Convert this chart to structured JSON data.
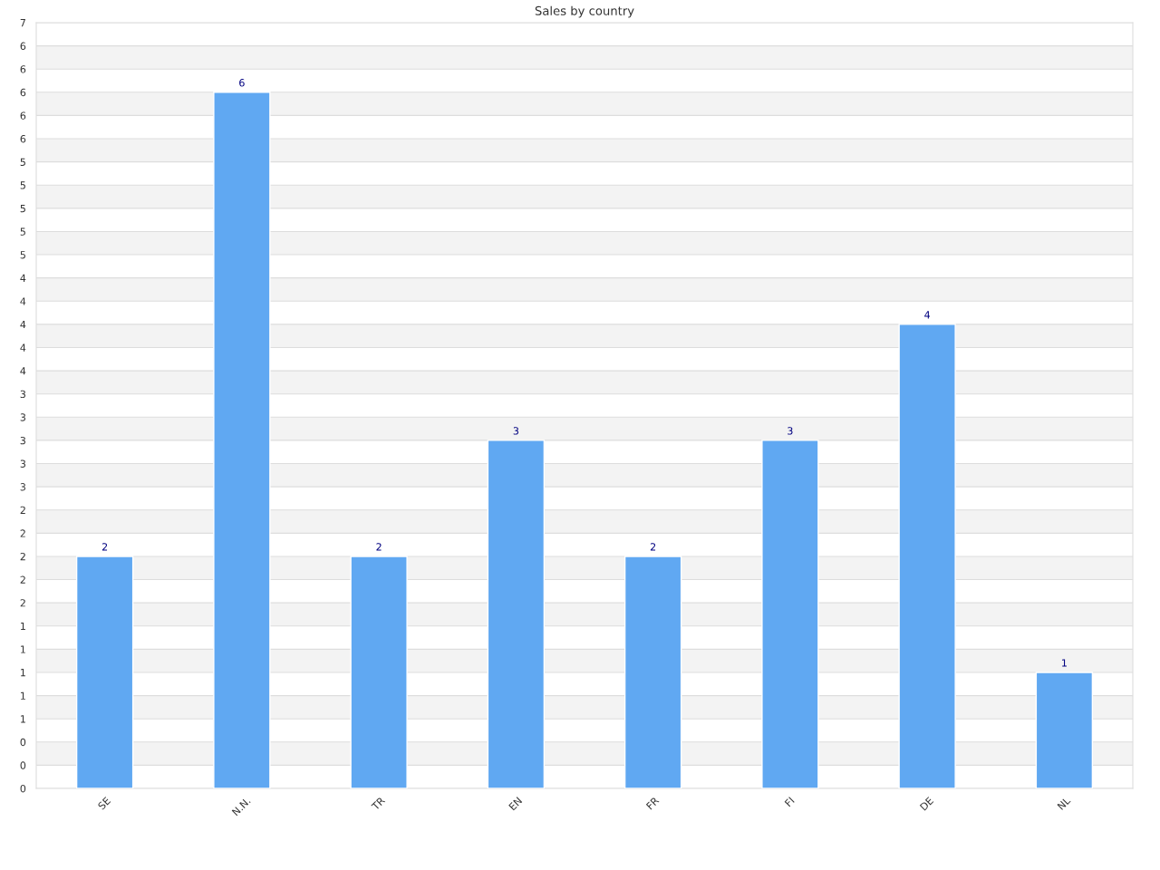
{
  "chart_data": {
    "type": "bar",
    "title": "Sales by country",
    "categories": [
      "SE",
      "N.N.",
      "TR",
      "EN",
      "FR",
      "FI",
      "DE",
      "NL"
    ],
    "values": [
      2,
      6,
      2,
      3,
      2,
      3,
      4,
      1
    ],
    "color": "#60a8f2",
    "data_labels": true,
    "ylim": [
      0,
      6.6
    ],
    "yticks": [
      {
        "value": 0,
        "label": "0"
      },
      {
        "value": 0.2,
        "label": "0"
      },
      {
        "value": 0.4,
        "label": "0"
      },
      {
        "value": 0.6,
        "label": "1"
      },
      {
        "value": 0.8,
        "label": "1"
      },
      {
        "value": 1.0,
        "label": "1"
      },
      {
        "value": 1.2,
        "label": "1"
      },
      {
        "value": 1.4,
        "label": "1"
      },
      {
        "value": 1.6,
        "label": "2"
      },
      {
        "value": 1.8,
        "label": "2"
      },
      {
        "value": 2.0,
        "label": "2"
      },
      {
        "value": 2.2,
        "label": "2"
      },
      {
        "value": 2.4,
        "label": "2"
      },
      {
        "value": 2.6,
        "label": "3"
      },
      {
        "value": 2.8,
        "label": "3"
      },
      {
        "value": 3.0,
        "label": "3"
      },
      {
        "value": 3.2,
        "label": "3"
      },
      {
        "value": 3.4,
        "label": "3"
      },
      {
        "value": 3.6,
        "label": "4"
      },
      {
        "value": 3.8,
        "label": "4"
      },
      {
        "value": 4.0,
        "label": "4"
      },
      {
        "value": 4.2,
        "label": "4"
      },
      {
        "value": 4.4,
        "label": "4"
      },
      {
        "value": 4.6,
        "label": "5"
      },
      {
        "value": 4.8,
        "label": "5"
      },
      {
        "value": 5.0,
        "label": "5"
      },
      {
        "value": 5.2,
        "label": "5"
      },
      {
        "value": 5.4,
        "label": "5"
      },
      {
        "value": 5.6,
        "label": "6"
      },
      {
        "value": 5.8,
        "label": "6"
      },
      {
        "value": 6.0,
        "label": "6"
      },
      {
        "value": 6.2,
        "label": "6"
      },
      {
        "value": 6.4,
        "label": "6"
      },
      {
        "value": 6.6,
        "label": "7"
      }
    ],
    "grid": "y"
  }
}
